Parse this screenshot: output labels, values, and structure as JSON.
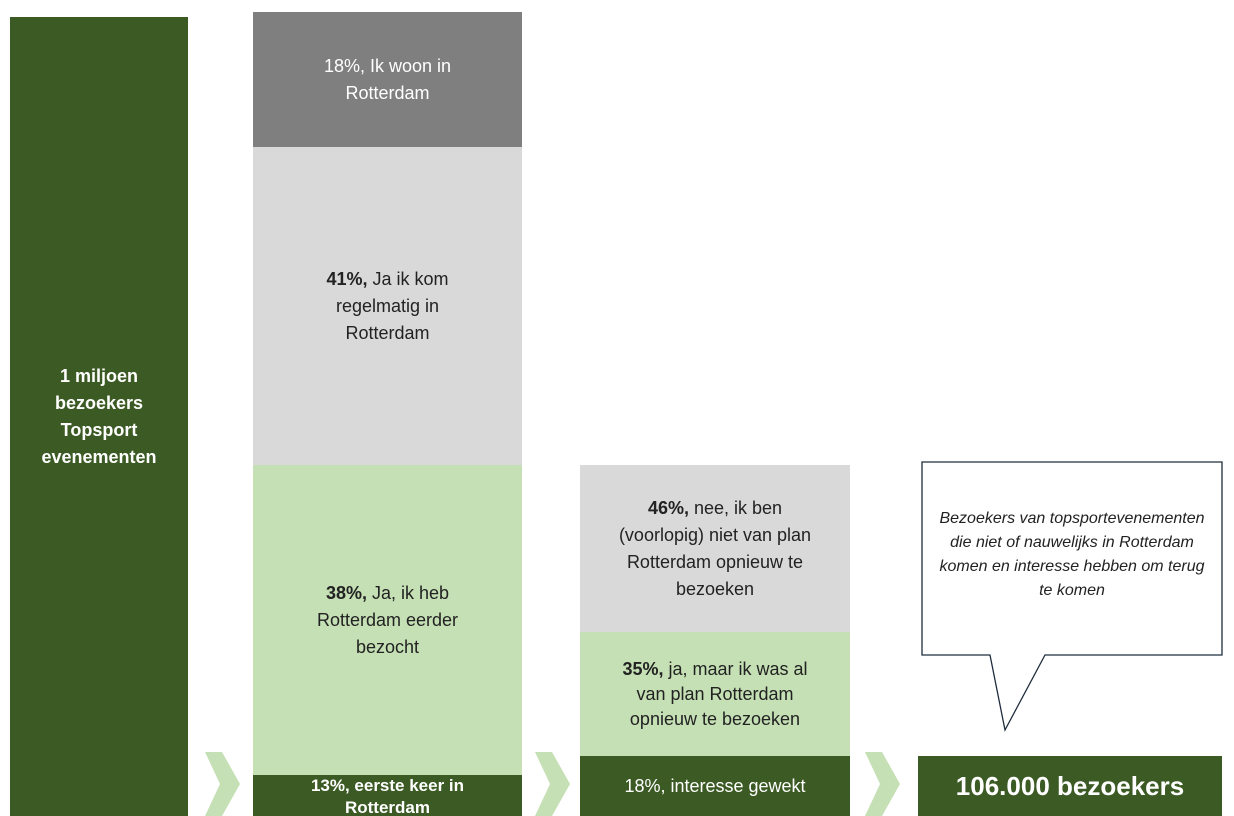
{
  "column1": {
    "text": "1 miljoen bezoekers Topsport evenementen"
  },
  "column2": {
    "segments": [
      {
        "bold": "",
        "text": "18%, Ik woon in Rotterdam"
      },
      {
        "bold": "41%,",
        "text": " Ja ik kom regelmatig in Rotterdam"
      },
      {
        "bold": "38%,",
        "text": " Ja, ik heb Rotterdam eerder bezocht"
      },
      {
        "bold": "13%, eerste keer  in Rotterdam",
        "text": ""
      }
    ]
  },
  "column3": {
    "segments": [
      {
        "bold": "46%,",
        "text": " nee, ik ben (voorlopig) niet van plan Rotterdam opnieuw te bezoeken"
      },
      {
        "bold": "35%,",
        "text": " ja, maar ik was al van plan Rotterdam opnieuw te bezoeken"
      },
      {
        "bold": "",
        "text": "18%, interesse gewekt"
      }
    ]
  },
  "callout": {
    "text": "Bezoekers van topsportevenementen die niet of nauwelijks in Rotterdam komen en interesse hebben om terug te komen"
  },
  "result": {
    "text": "106.000 bezoekers"
  }
}
